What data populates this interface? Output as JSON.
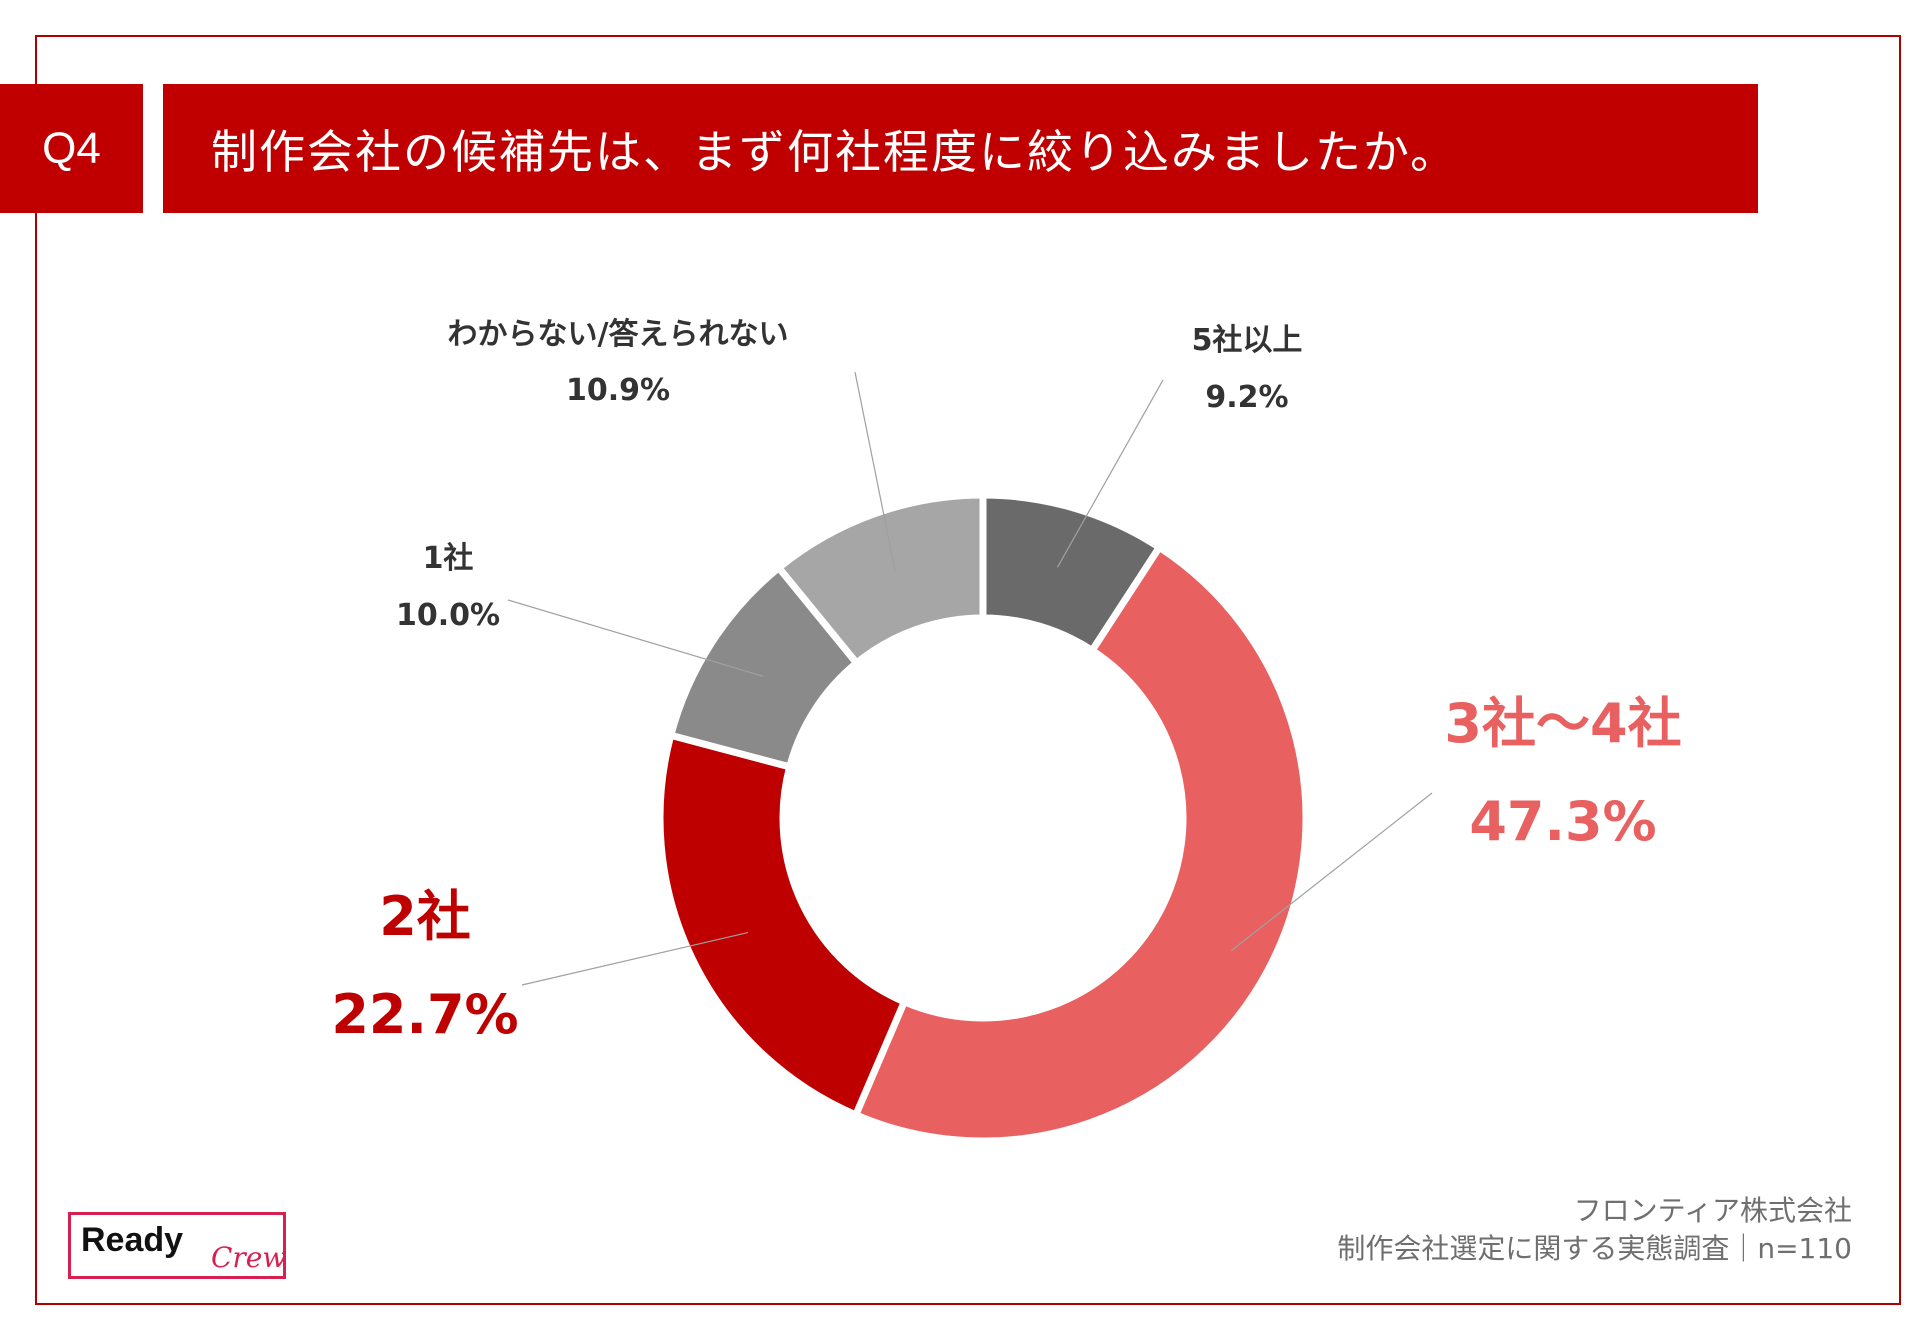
{
  "header": {
    "question": "Q4",
    "title": "制作会社の候補先は、まず何社程度に絞り込みましたか。"
  },
  "colors": {
    "accent": "#c00000",
    "frame": "#b00000",
    "logo": "#d6204f"
  },
  "chart_data": {
    "type": "pie",
    "subtype": "donut",
    "title": "制作会社の候補先は、まず何社程度に絞り込みましたか。",
    "slices": [
      {
        "label": "5社以上",
        "value": 9.2,
        "value_label": "9.2%",
        "color": "#6a6a6a",
        "label_color": "#333333"
      },
      {
        "label": "3社〜4社",
        "value": 47.3,
        "value_label": "47.3%",
        "color": "#e86060",
        "label_color": "#e86060"
      },
      {
        "label": "2社",
        "value": 22.7,
        "value_label": "22.7%",
        "color": "#bf0000",
        "label_color": "#bf0000"
      },
      {
        "label": "1社",
        "value": 10.0,
        "value_label": "10.0%",
        "color": "#8a8a8a",
        "label_color": "#333333"
      },
      {
        "label": "わからない/答えられない",
        "value": 10.9,
        "value_label": "10.9%",
        "color": "#a6a6a6",
        "label_color": "#333333"
      }
    ]
  },
  "footer": {
    "company": "フロンティア株式会社",
    "survey": "制作会社選定に関する実態調査｜n=110"
  },
  "logo": {
    "word1": "Ready",
    "word2": "Crew"
  }
}
